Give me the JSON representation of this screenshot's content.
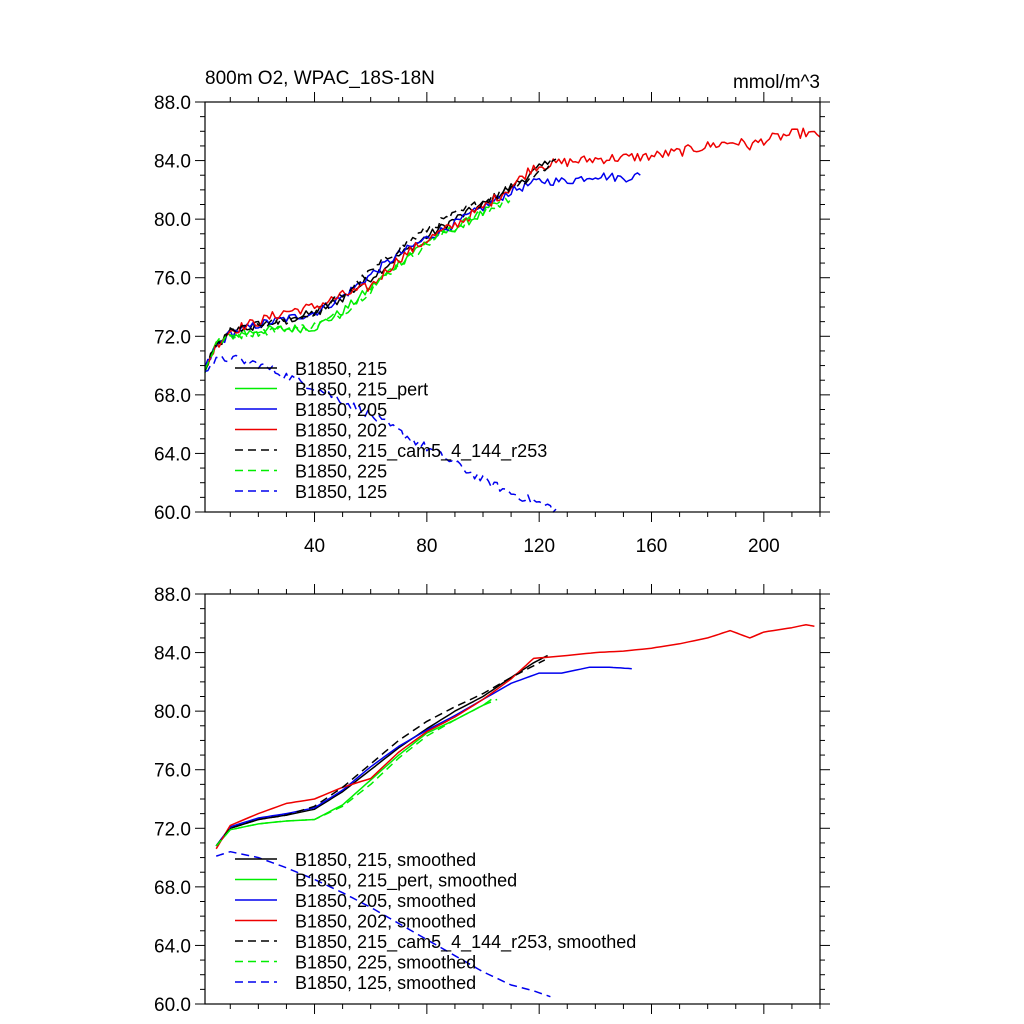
{
  "figure": {
    "title_left": "800m O2, WPAC_18S-18N",
    "title_right": "mmol/m^3"
  },
  "chart_data": [
    {
      "type": "line",
      "name": "raw",
      "xlim": [
        1,
        220
      ],
      "ylim": [
        60,
        88
      ],
      "x_ticks": [
        40,
        80,
        120,
        160,
        200
      ],
      "x_tick_labels": [
        "40",
        "80",
        "120",
        "160",
        "200"
      ],
      "y_ticks": [
        60,
        64,
        68,
        72,
        76,
        80,
        84,
        88
      ],
      "y_tick_labels": [
        "60.0",
        "64.0",
        "68.0",
        "72.0",
        "76.0",
        "80.0",
        "84.0",
        "88.0"
      ],
      "series": [
        {
          "name": "B1850, 215",
          "color": "#000000",
          "dash": "solid",
          "noise": 0.3,
          "points": [
            [
              1,
              69.8
            ],
            [
              5,
              71.2
            ],
            [
              10,
              72.3
            ],
            [
              20,
              72.8
            ],
            [
              30,
              73.1
            ],
            [
              40,
              73.6
            ],
            [
              50,
              74.6
            ],
            [
              60,
              76.0
            ],
            [
              70,
              77.5
            ],
            [
              80,
              78.8
            ],
            [
              90,
              80.0
            ],
            [
              100,
              81.0
            ],
            [
              110,
              82.2
            ],
            [
              118,
              83.2
            ],
            [
              124,
              84.0
            ]
          ]
        },
        {
          "name": "B1850, 215_pert",
          "color": "#00ee00",
          "dash": "solid",
          "noise": 0.3,
          "points": [
            [
              1,
              69.8
            ],
            [
              5,
              71.5
            ],
            [
              10,
              72.0
            ],
            [
              20,
              72.4
            ],
            [
              30,
              72.5
            ],
            [
              40,
              72.6
            ],
            [
              50,
              73.7
            ],
            [
              60,
              75.3
            ],
            [
              70,
              77.0
            ],
            [
              80,
              78.5
            ],
            [
              90,
              79.4
            ],
            [
              100,
              80.4
            ],
            [
              106,
              81.2
            ]
          ]
        },
        {
          "name": "B1850, 205",
          "color": "#0000ee",
          "dash": "solid",
          "noise": 0.3,
          "points": [
            [
              1,
              69.8
            ],
            [
              5,
              71.3
            ],
            [
              10,
              72.2
            ],
            [
              20,
              72.8
            ],
            [
              30,
              73.2
            ],
            [
              40,
              73.6
            ],
            [
              50,
              74.7
            ],
            [
              60,
              76.2
            ],
            [
              70,
              77.6
            ],
            [
              80,
              78.7
            ],
            [
              90,
              79.7
            ],
            [
              100,
              80.8
            ],
            [
              110,
              81.9
            ],
            [
              120,
              82.6
            ],
            [
              130,
              82.6
            ],
            [
              140,
              83.0
            ],
            [
              150,
              82.8
            ],
            [
              156,
              83.0
            ]
          ]
        },
        {
          "name": "B1850, 202",
          "color": "#ee0000",
          "dash": "solid",
          "noise": 0.35,
          "points": [
            [
              1,
              69.8
            ],
            [
              5,
              71.4
            ],
            [
              10,
              72.4
            ],
            [
              20,
              73.0
            ],
            [
              30,
              73.7
            ],
            [
              40,
              74.0
            ],
            [
              50,
              74.8
            ],
            [
              60,
              75.4
            ],
            [
              70,
              77.3
            ],
            [
              80,
              78.6
            ],
            [
              90,
              79.6
            ],
            [
              100,
              80.8
            ],
            [
              110,
              82.2
            ],
            [
              118,
              83.6
            ],
            [
              130,
              83.9
            ],
            [
              140,
              84.1
            ],
            [
              150,
              84.2
            ],
            [
              160,
              84.3
            ],
            [
              170,
              84.6
            ],
            [
              180,
              85.0
            ],
            [
              190,
              85.3
            ],
            [
              195,
              85.0
            ],
            [
              200,
              85.4
            ],
            [
              210,
              85.8
            ],
            [
              215,
              85.9
            ],
            [
              220,
              85.6
            ]
          ]
        },
        {
          "name": "B1850, 215_cam5_4_144_r253",
          "color": "#000000",
          "dash": "8,5",
          "noise": 0.3,
          "points": [
            [
              1,
              69.8
            ],
            [
              5,
              71.3
            ],
            [
              10,
              72.3
            ],
            [
              20,
              72.7
            ],
            [
              30,
              73.1
            ],
            [
              40,
              73.5
            ],
            [
              50,
              74.8
            ],
            [
              60,
              76.4
            ],
            [
              70,
              78.0
            ],
            [
              80,
              79.3
            ],
            [
              90,
              80.3
            ],
            [
              100,
              81.2
            ],
            [
              110,
              82.2
            ],
            [
              120,
              83.2
            ],
            [
              126,
              84.1
            ]
          ]
        },
        {
          "name": "B1850, 225",
          "color": "#00ee00",
          "dash": "8,5",
          "noise": 0.3,
          "points": [
            [
              1,
              69.8
            ],
            [
              5,
              71.5
            ],
            [
              10,
              72.0
            ],
            [
              20,
              72.3
            ],
            [
              30,
              72.5
            ],
            [
              40,
              72.7
            ],
            [
              50,
              73.6
            ],
            [
              60,
              75.2
            ],
            [
              70,
              76.9
            ],
            [
              80,
              78.3
            ],
            [
              90,
              79.4
            ],
            [
              100,
              80.4
            ],
            [
              106,
              81.0
            ],
            [
              110,
              81.4
            ]
          ]
        },
        {
          "name": "B1850, 125",
          "color": "#0000ee",
          "dash": "8,5",
          "noise": 0.3,
          "points": [
            [
              1,
              69.8
            ],
            [
              5,
              70.3
            ],
            [
              10,
              70.5
            ],
            [
              20,
              70.1
            ],
            [
              30,
              69.3
            ],
            [
              40,
              68.5
            ],
            [
              50,
              67.6
            ],
            [
              60,
              66.6
            ],
            [
              70,
              65.5
            ],
            [
              80,
              64.4
            ],
            [
              90,
              63.3
            ],
            [
              100,
              62.2
            ],
            [
              110,
              61.3
            ],
            [
              120,
              60.6
            ],
            [
              126,
              60.2
            ]
          ]
        }
      ],
      "legend": [
        "B1850, 215",
        "B1850, 215_pert",
        "B1850, 205",
        "B1850, 202",
        "B1850, 215_cam5_4_144_r253",
        "B1850, 225",
        "B1850, 125"
      ]
    },
    {
      "type": "line",
      "name": "smoothed",
      "xlim": [
        1,
        220
      ],
      "ylim": [
        60,
        88
      ],
      "y_ticks": [
        60,
        64,
        68,
        72,
        76,
        80,
        84,
        88
      ],
      "y_tick_labels": [
        "60.0",
        "64.0",
        "68.0",
        "72.0",
        "76.0",
        "80.0",
        "84.0",
        "88.0"
      ],
      "series": [
        {
          "name": "B1850, 215, smoothed",
          "color": "#000000",
          "dash": "solid",
          "points": [
            [
              5,
              70.8
            ],
            [
              10,
              72.0
            ],
            [
              20,
              72.6
            ],
            [
              30,
              72.9
            ],
            [
              40,
              73.3
            ],
            [
              50,
              74.5
            ],
            [
              60,
              76.0
            ],
            [
              70,
              77.5
            ],
            [
              80,
              78.8
            ],
            [
              90,
              80.0
            ],
            [
              100,
              81.0
            ],
            [
              110,
              82.3
            ],
            [
              118,
              83.3
            ],
            [
              123,
              83.8
            ]
          ]
        },
        {
          "name": "B1850, 215_pert, smoothed",
          "color": "#00ee00",
          "dash": "solid",
          "points": [
            [
              5,
              70.8
            ],
            [
              10,
              71.9
            ],
            [
              20,
              72.3
            ],
            [
              30,
              72.5
            ],
            [
              40,
              72.6
            ],
            [
              50,
              73.6
            ],
            [
              60,
              75.3
            ],
            [
              70,
              77.0
            ],
            [
              80,
              78.5
            ],
            [
              90,
              79.4
            ],
            [
              100,
              80.4
            ],
            [
              103,
              80.8
            ]
          ]
        },
        {
          "name": "B1850, 205, smoothed",
          "color": "#0000ee",
          "dash": "solid",
          "points": [
            [
              5,
              70.8
            ],
            [
              10,
              72.1
            ],
            [
              20,
              72.7
            ],
            [
              30,
              73.0
            ],
            [
              40,
              73.4
            ],
            [
              50,
              74.6
            ],
            [
              60,
              76.2
            ],
            [
              70,
              77.6
            ],
            [
              80,
              78.7
            ],
            [
              90,
              79.7
            ],
            [
              100,
              80.8
            ],
            [
              110,
              81.9
            ],
            [
              120,
              82.6
            ],
            [
              128,
              82.6
            ],
            [
              138,
              83.0
            ],
            [
              145,
              83.0
            ],
            [
              153,
              82.9
            ]
          ]
        },
        {
          "name": "B1850, 202, smoothed",
          "color": "#ee0000",
          "dash": "solid",
          "points": [
            [
              5,
              70.6
            ],
            [
              10,
              72.2
            ],
            [
              20,
              73.0
            ],
            [
              30,
              73.7
            ],
            [
              40,
              74.0
            ],
            [
              50,
              74.8
            ],
            [
              60,
              75.4
            ],
            [
              70,
              77.2
            ],
            [
              80,
              78.6
            ],
            [
              90,
              79.6
            ],
            [
              100,
              80.8
            ],
            [
              110,
              82.2
            ],
            [
              118,
              83.6
            ],
            [
              130,
              83.8
            ],
            [
              140,
              84.0
            ],
            [
              150,
              84.1
            ],
            [
              160,
              84.3
            ],
            [
              170,
              84.6
            ],
            [
              180,
              85.0
            ],
            [
              188,
              85.5
            ],
            [
              195,
              85.0
            ],
            [
              200,
              85.4
            ],
            [
              210,
              85.7
            ],
            [
              215,
              85.9
            ],
            [
              218,
              85.8
            ]
          ]
        },
        {
          "name": "B1850, 215_cam5_4_144_r253, smoothed",
          "color": "#000000",
          "dash": "8,5",
          "points": [
            [
              5,
              70.8
            ],
            [
              10,
              72.0
            ],
            [
              20,
              72.6
            ],
            [
              30,
              72.9
            ],
            [
              40,
              73.5
            ],
            [
              50,
              74.8
            ],
            [
              60,
              76.4
            ],
            [
              70,
              78.0
            ],
            [
              80,
              79.3
            ],
            [
              90,
              80.3
            ],
            [
              100,
              81.2
            ],
            [
              110,
              82.3
            ],
            [
              118,
              83.1
            ],
            [
              122,
              83.5
            ]
          ]
        },
        {
          "name": "B1850, 225, smoothed",
          "color": "#00ee00",
          "dash": "8,5",
          "points": [
            [
              5,
              70.8
            ],
            [
              10,
              71.9
            ],
            [
              20,
              72.3
            ],
            [
              30,
              72.5
            ],
            [
              40,
              72.6
            ],
            [
              50,
              73.5
            ],
            [
              60,
              75.0
            ],
            [
              70,
              76.8
            ],
            [
              80,
              78.3
            ],
            [
              90,
              79.4
            ],
            [
              100,
              80.4
            ],
            [
              105,
              80.8
            ]
          ]
        },
        {
          "name": "B1850, 125, smoothed",
          "color": "#0000ee",
          "dash": "8,5",
          "points": [
            [
              5,
              70.1
            ],
            [
              10,
              70.4
            ],
            [
              20,
              70.0
            ],
            [
              30,
              69.3
            ],
            [
              40,
              68.5
            ],
            [
              50,
              67.6
            ],
            [
              60,
              66.6
            ],
            [
              70,
              65.5
            ],
            [
              80,
              64.4
            ],
            [
              90,
              63.3
            ],
            [
              100,
              62.2
            ],
            [
              110,
              61.3
            ],
            [
              118,
              60.9
            ],
            [
              124,
              60.5
            ]
          ]
        }
      ],
      "legend": [
        "B1850, 215, smoothed",
        "B1850, 215_pert, smoothed",
        "B1850, 205, smoothed",
        "B1850, 202, smoothed",
        "B1850, 215_cam5_4_144_r253, smoothed",
        "B1850, 225, smoothed",
        "B1850, 125, smoothed"
      ]
    }
  ]
}
